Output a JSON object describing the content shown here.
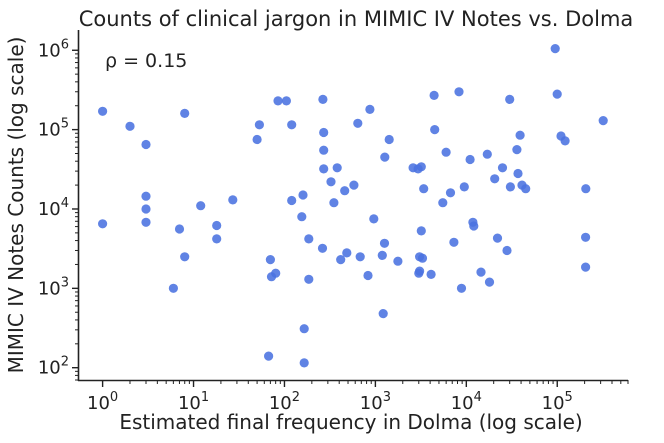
{
  "chart_data": {
    "type": "scatter",
    "title": "Counts of clinical jargon in MIMIC IV Notes vs. Dolma",
    "xlabel": "Estimated final frequency in Dolma (log scale)",
    "ylabel": "MIMIC IV Notes Counts (log scale)",
    "annotation": "ρ = 0.15",
    "x_scale": "log",
    "y_scale": "log",
    "xlim": [
      0.55,
      600000
    ],
    "ylim": [
      70,
      1800000
    ],
    "x_ticks": [
      {
        "value": 1,
        "base": "10",
        "exp": "0"
      },
      {
        "value": 10,
        "base": "10",
        "exp": "1"
      },
      {
        "value": 100,
        "base": "10",
        "exp": "2"
      },
      {
        "value": 1000,
        "base": "10",
        "exp": "3"
      },
      {
        "value": 10000,
        "base": "10",
        "exp": "4"
      },
      {
        "value": 100000,
        "base": "10",
        "exp": "5"
      }
    ],
    "y_ticks": [
      {
        "value": 100,
        "base": "10",
        "exp": "2"
      },
      {
        "value": 1000,
        "base": "10",
        "exp": "3"
      },
      {
        "value": 10000,
        "base": "10",
        "exp": "4"
      },
      {
        "value": 100000,
        "base": "10",
        "exp": "5"
      },
      {
        "value": 1000000,
        "base": "10",
        "exp": "6"
      }
    ],
    "grid": false,
    "point_color": "#4a72e0",
    "points": [
      [
        1,
        170000
      ],
      [
        1,
        6500
      ],
      [
        2,
        110000
      ],
      [
        3,
        65000
      ],
      [
        3,
        14500
      ],
      [
        3,
        10000
      ],
      [
        3,
        6800
      ],
      [
        6,
        1000
      ],
      [
        7,
        5600
      ],
      [
        8,
        160000
      ],
      [
        8,
        2500
      ],
      [
        12,
        11000
      ],
      [
        18,
        6200
      ],
      [
        18,
        4200
      ],
      [
        27,
        13000
      ],
      [
        50,
        75000
      ],
      [
        53,
        115000
      ],
      [
        67,
        140
      ],
      [
        70,
        2300
      ],
      [
        72,
        1400
      ],
      [
        80,
        1550
      ],
      [
        85,
        230000
      ],
      [
        105,
        230000
      ],
      [
        120,
        115000
      ],
      [
        120,
        12800
      ],
      [
        160,
        15000
      ],
      [
        155,
        8000
      ],
      [
        165,
        310
      ],
      [
        165,
        115
      ],
      [
        185,
        4200
      ],
      [
        185,
        1300
      ],
      [
        265,
        240000
      ],
      [
        270,
        92000
      ],
      [
        270,
        55000
      ],
      [
        270,
        32000
      ],
      [
        262,
        3200
      ],
      [
        325,
        22000
      ],
      [
        350,
        12000
      ],
      [
        380,
        33000
      ],
      [
        415,
        2300
      ],
      [
        460,
        17000
      ],
      [
        485,
        2800
      ],
      [
        580,
        20000
      ],
      [
        640,
        120000
      ],
      [
        680,
        2500
      ],
      [
        870,
        180000
      ],
      [
        830,
        1450
      ],
      [
        960,
        7500
      ],
      [
        1190,
        2600
      ],
      [
        1220,
        480
      ],
      [
        1260,
        3700
      ],
      [
        1270,
        45000
      ],
      [
        1420,
        75000
      ],
      [
        1770,
        2200
      ],
      [
        2600,
        33000
      ],
      [
        2950,
        32000
      ],
      [
        3060,
        2500
      ],
      [
        3060,
        1650
      ],
      [
        3000,
        1550
      ],
      [
        3200,
        5300
      ],
      [
        3300,
        2400
      ],
      [
        3200,
        34000
      ],
      [
        3400,
        18000
      ],
      [
        4100,
        1500
      ],
      [
        4420,
        270000
      ],
      [
        4490,
        100000
      ],
      [
        5510,
        12000
      ],
      [
        6000,
        52000
      ],
      [
        6700,
        16000
      ],
      [
        7300,
        3800
      ],
      [
        8300,
        300000
      ],
      [
        8850,
        1000
      ],
      [
        9500,
        19000
      ],
      [
        11000,
        42000
      ],
      [
        11800,
        6800
      ],
      [
        12100,
        6100
      ],
      [
        14500,
        1600
      ],
      [
        17000,
        49000
      ],
      [
        18000,
        1200
      ],
      [
        20500,
        24000
      ],
      [
        22000,
        4300
      ],
      [
        25000,
        33000
      ],
      [
        28000,
        3000
      ],
      [
        30000,
        240000
      ],
      [
        30500,
        19000
      ],
      [
        36000,
        56000
      ],
      [
        37000,
        28000
      ],
      [
        39000,
        85000
      ],
      [
        41000,
        20000
      ],
      [
        45000,
        18000
      ],
      [
        95000,
        1050000
      ],
      [
        100000,
        280000
      ],
      [
        110000,
        83000
      ],
      [
        122000,
        72000
      ],
      [
        206000,
        18000
      ],
      [
        205000,
        4400
      ],
      [
        205000,
        1850
      ],
      [
        320000,
        130000
      ]
    ]
  }
}
